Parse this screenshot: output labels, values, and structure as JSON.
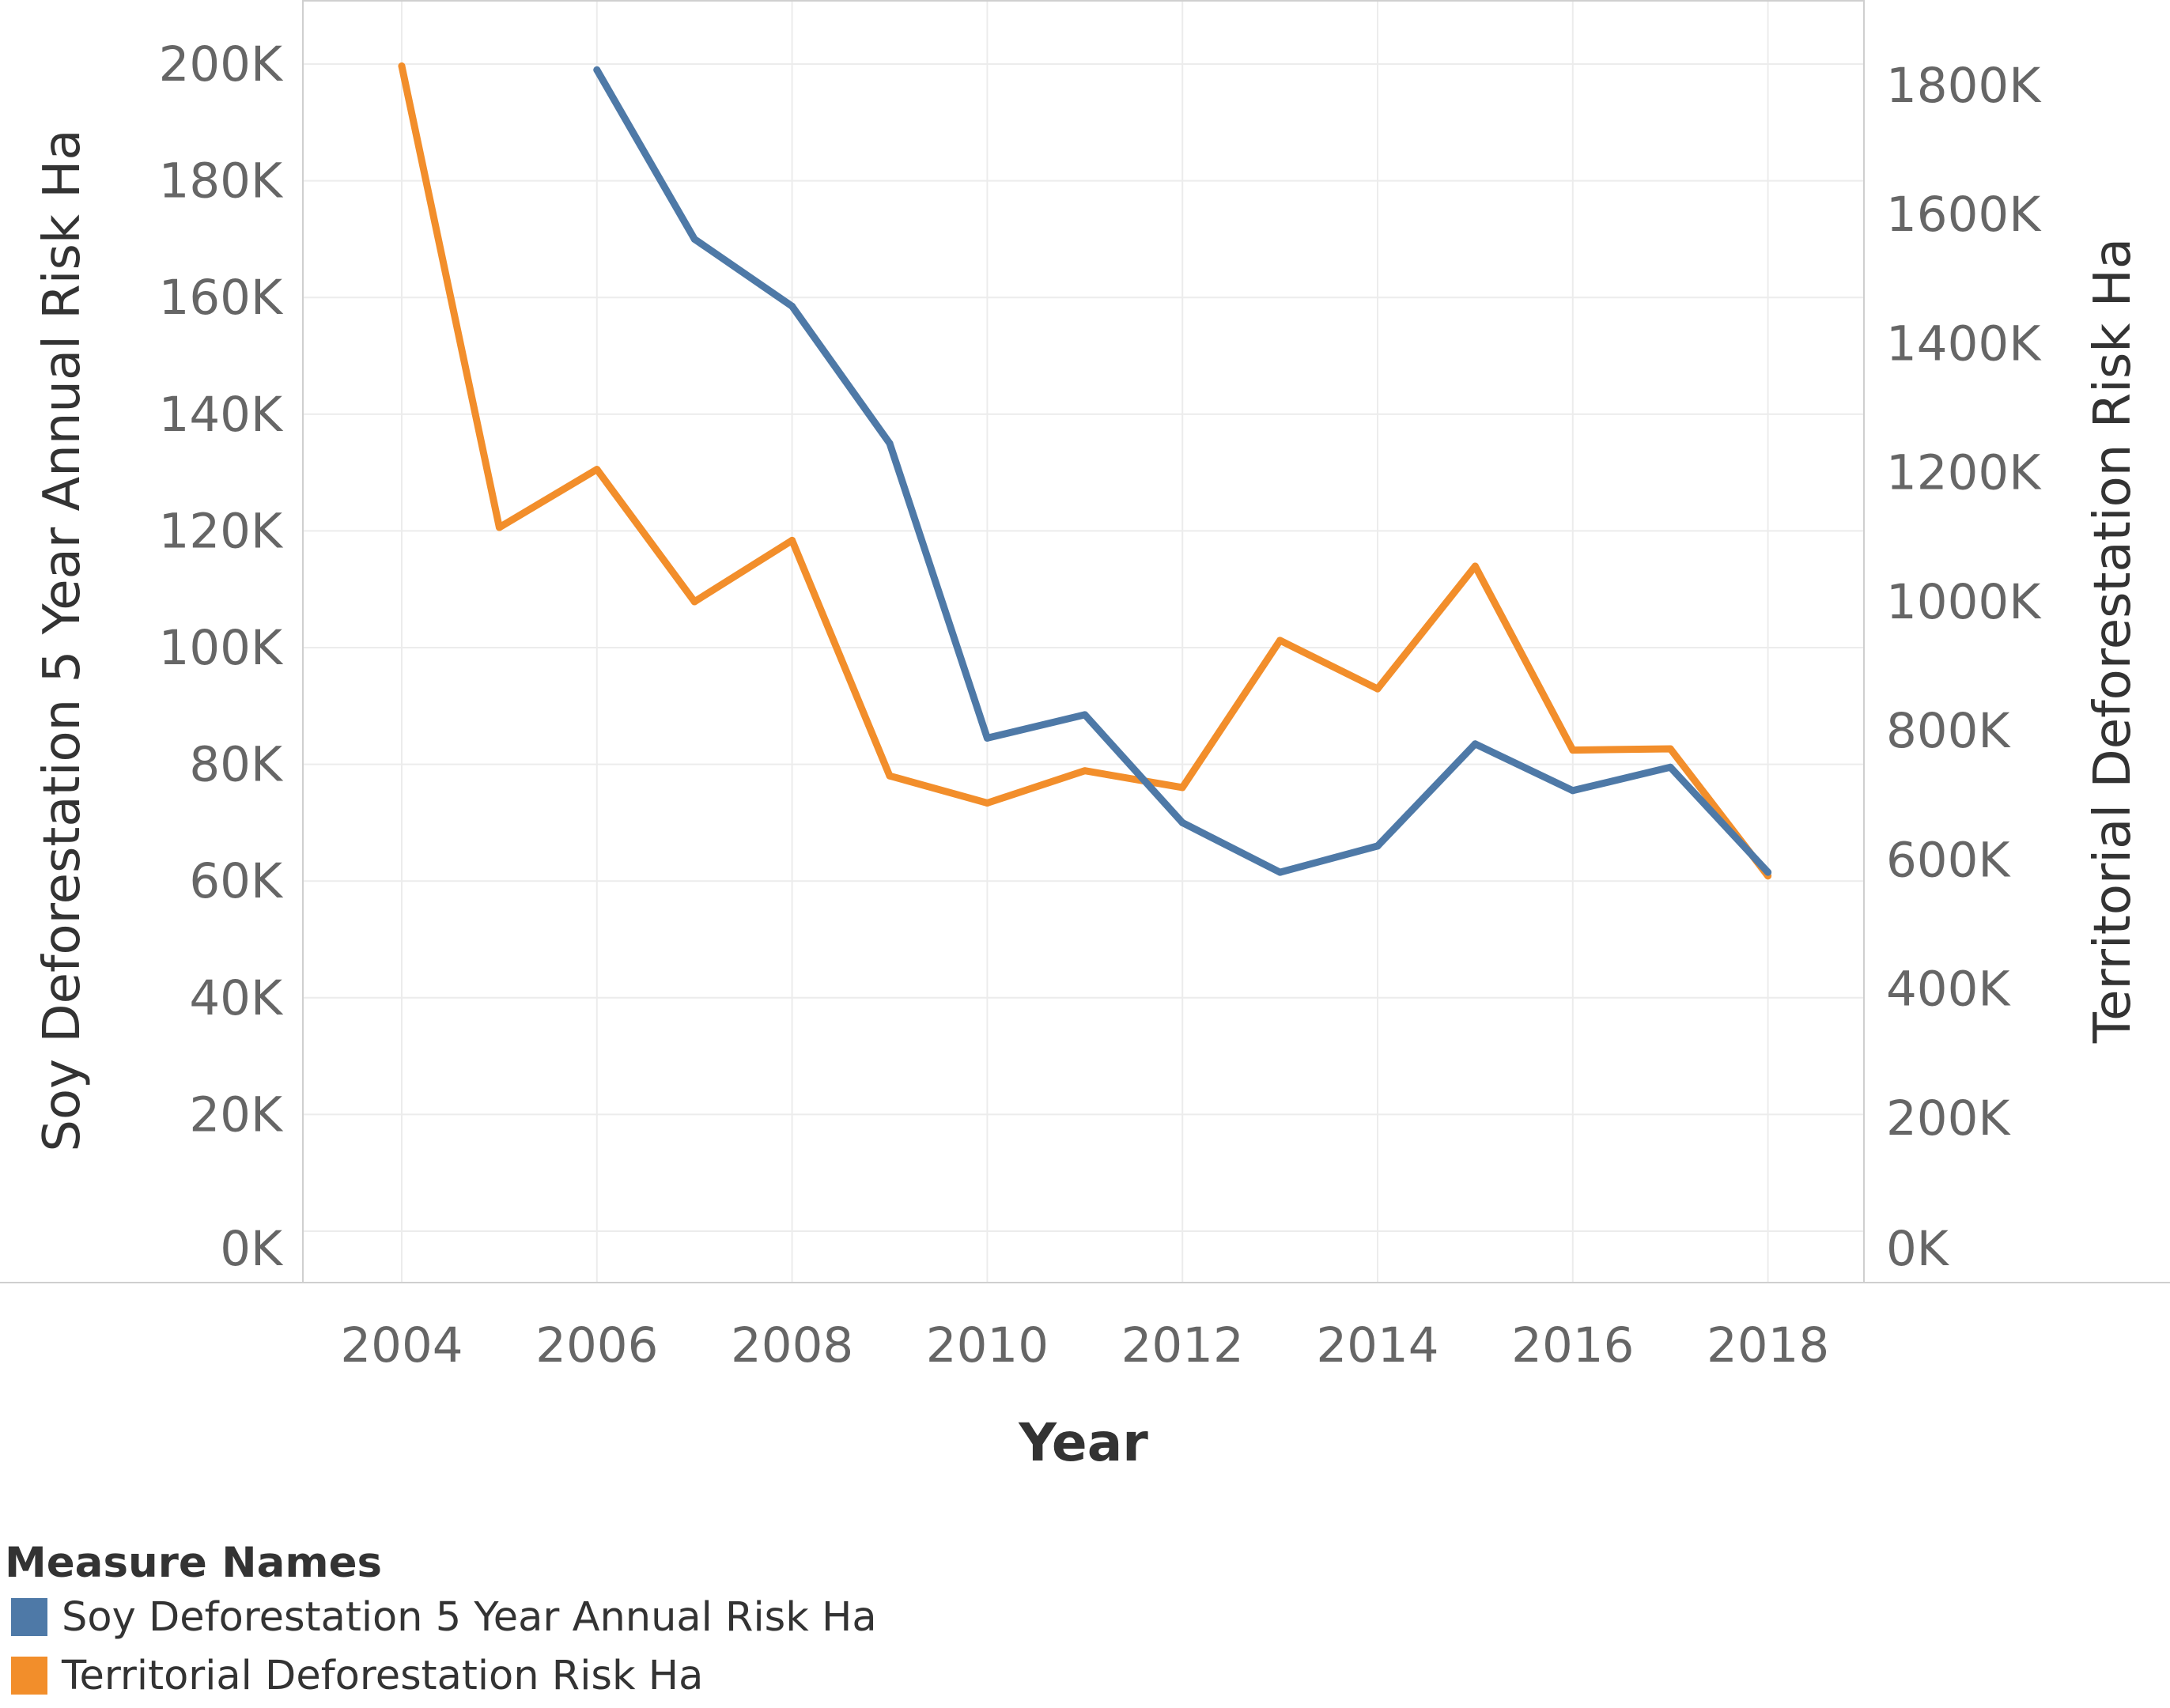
{
  "chart_data": {
    "type": "line",
    "x_label": "Year",
    "y_left_label": "Soy Deforestation 5 Year Annual Risk Ha",
    "y_right_label": "Territorial Deforestation Risk Ha",
    "x_ticks": [
      "2004",
      "2006",
      "2008",
      "2010",
      "2012",
      "2014",
      "2016",
      "2018"
    ],
    "x_range": [
      2003,
      2019
    ],
    "y_left_ticks": [
      "0K",
      "20K",
      "40K",
      "60K",
      "80K",
      "100K",
      "120K",
      "140K",
      "160K",
      "180K",
      "200K"
    ],
    "y_left_range": [
      0,
      200000
    ],
    "y_right_ticks": [
      "0K",
      "200K",
      "400K",
      "600K",
      "800K",
      "1000K",
      "1200K",
      "1400K",
      "1600K",
      "1800K"
    ],
    "y_right_range": [
      0,
      1800000
    ],
    "grid": true,
    "legend": {
      "title": "Measure Names",
      "position": "bottom-left"
    },
    "series": [
      {
        "name": "Soy Deforestation 5 Year Annual Risk Ha",
        "axis": "left",
        "color": "#4e79a7",
        "x": [
          2006,
          2007,
          2008,
          2009,
          2010,
          2011,
          2012,
          2013,
          2014,
          2015,
          2016,
          2017,
          2018
        ],
        "values": [
          199000,
          170000,
          158500,
          135000,
          84500,
          88500,
          70000,
          61500,
          66000,
          83500,
          75500,
          79500,
          61500
        ]
      },
      {
        "name": "Territorial Deforestation Risk Ha",
        "axis": "right",
        "color": "#f28e2b",
        "x": [
          2004,
          2005,
          2006,
          2007,
          2008,
          2009,
          2010,
          2011,
          2012,
          2013,
          2014,
          2015,
          2016,
          2017,
          2018
        ],
        "values": [
          1830000,
          1115000,
          1205000,
          1000000,
          1095000,
          730000,
          688000,
          738000,
          712000,
          940000,
          865000,
          1055000,
          770000,
          772000,
          575000
        ]
      }
    ]
  }
}
